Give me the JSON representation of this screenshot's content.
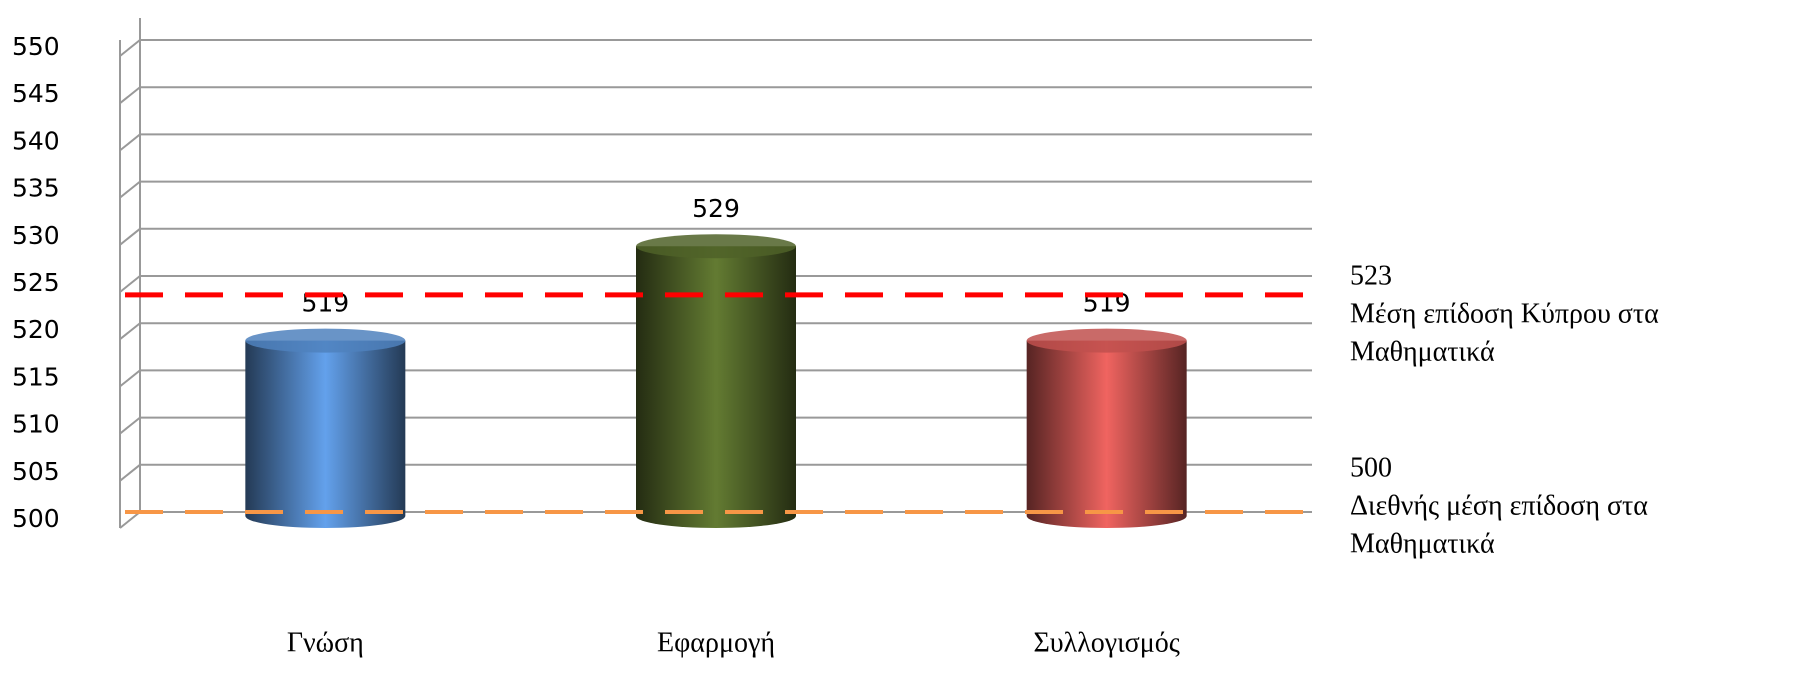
{
  "chart_data": {
    "type": "bar",
    "categories": [
      "Γνώση",
      "Εφαρμογή",
      "Συλλογισμός"
    ],
    "values": [
      519,
      529,
      519
    ],
    "colors": [
      "#4f81bd",
      "#4f6228",
      "#c0504d"
    ],
    "ylim": [
      500,
      550
    ],
    "yticks": [
      500,
      505,
      510,
      515,
      520,
      525,
      530,
      535,
      540,
      545,
      550
    ],
    "grid": true,
    "reference_lines": [
      {
        "value": 523,
        "color": "#ff0000",
        "label_lines": [
          "Μέση επίδοση Κύπρου στα",
          "Μαθηματικά"
        ]
      },
      {
        "value": 500,
        "color": "#f79646",
        "label_lines": [
          "Διεθνής μέση επίδοση στα",
          "Μαθηματικά"
        ]
      }
    ]
  }
}
